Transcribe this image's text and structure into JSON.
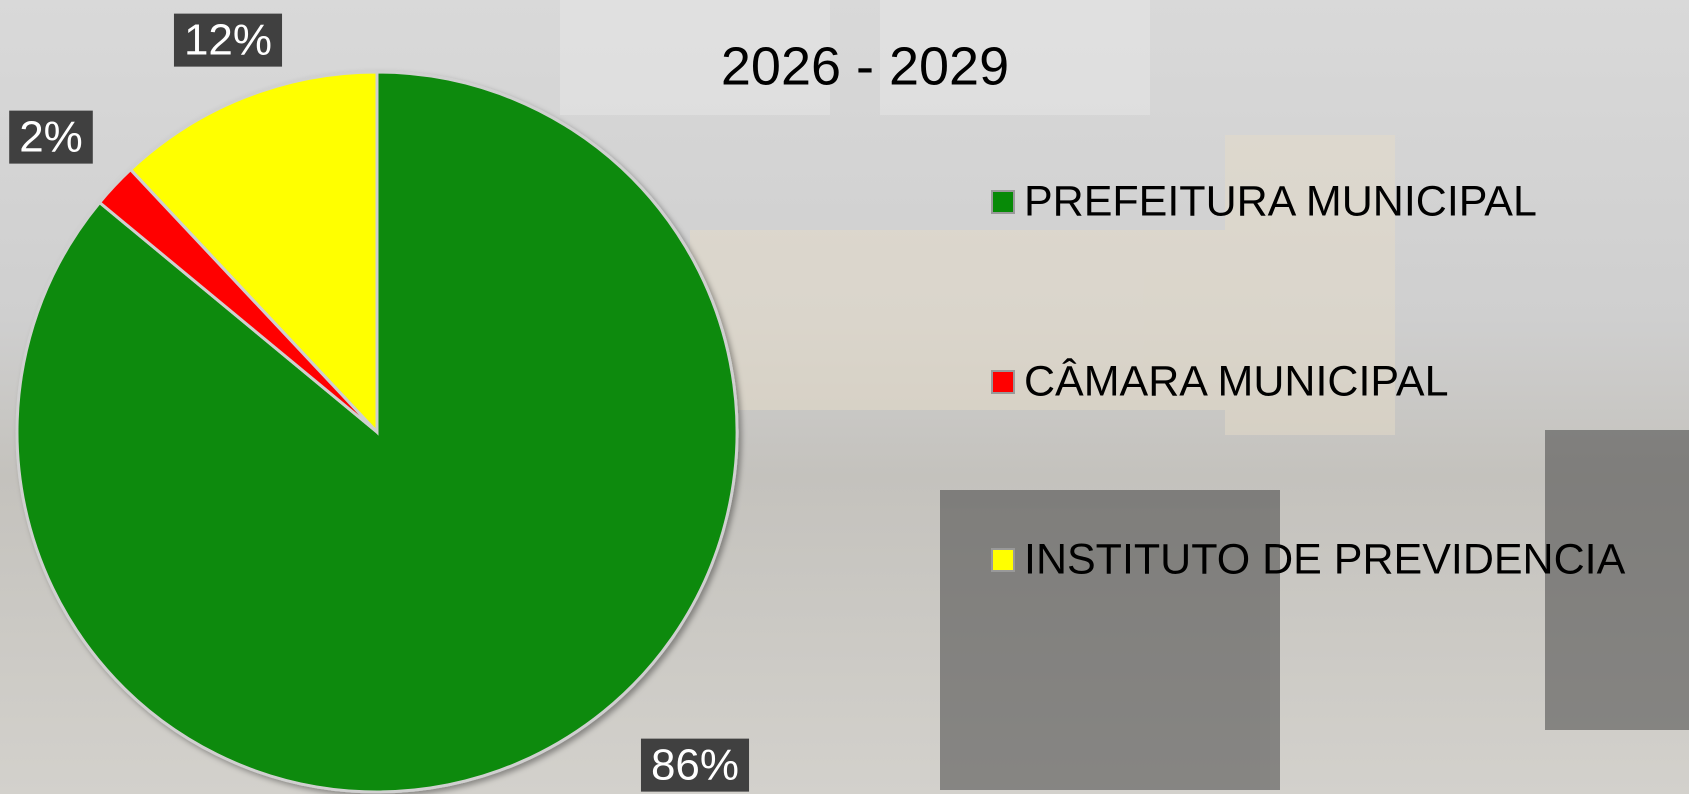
{
  "chart_data": {
    "type": "pie",
    "title": "2026 - 2029",
    "categories": [
      "PREFEITURA MUNICIPAL",
      "CÂMARA MUNICIPAL",
      "INSTITUTO DE PREVIDENCIA"
    ],
    "values": [
      86,
      2,
      12
    ],
    "value_labels": [
      "86%",
      "2%",
      "12%"
    ],
    "colors": [
      "#078a07",
      "#ff0000",
      "#ffff00"
    ],
    "legend": "right"
  }
}
